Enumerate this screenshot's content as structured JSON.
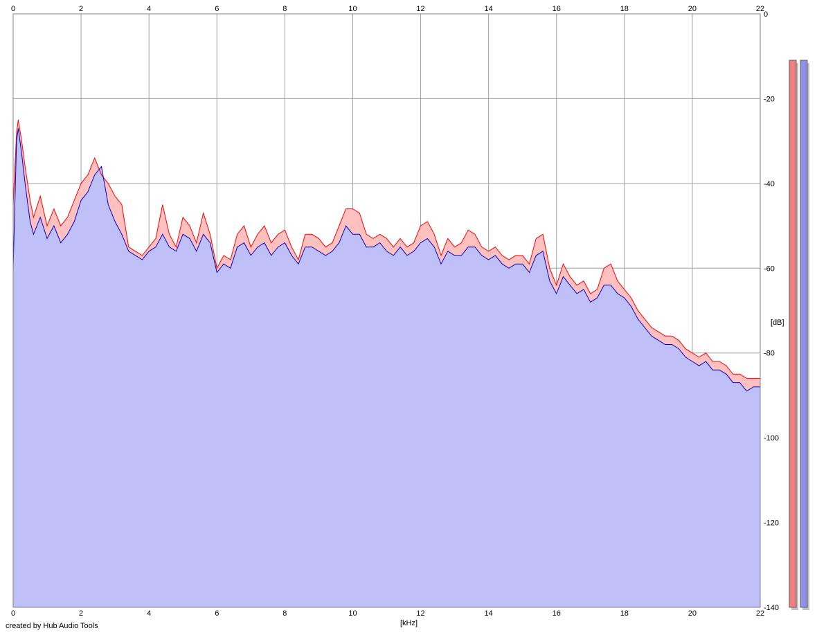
{
  "chart_data": {
    "type": "area",
    "xlabel": "[kHz]",
    "ylabel": "[dB]",
    "xlim": [
      0,
      22
    ],
    "ylim": [
      -140,
      0
    ],
    "x_ticks": [
      "0",
      "2",
      "4",
      "6",
      "8",
      "10",
      "12",
      "14",
      "16",
      "18",
      "20",
      "22"
    ],
    "y_ticks": [
      "0",
      "-20",
      "-40",
      "-60",
      "-80",
      "-100",
      "-120",
      "-140"
    ],
    "grid": true,
    "series": [
      {
        "color": "#ff0000",
        "fill": "#ffc0c0",
        "points": [
          [
            0,
            -45
          ],
          [
            0.1,
            -28
          ],
          [
            0.15,
            -25
          ],
          [
            0.25,
            -30
          ],
          [
            0.35,
            -36
          ],
          [
            0.5,
            -44
          ],
          [
            0.6,
            -48
          ],
          [
            0.8,
            -43
          ],
          [
            1,
            -50
          ],
          [
            1.2,
            -46
          ],
          [
            1.4,
            -50
          ],
          [
            1.6,
            -48
          ],
          [
            1.8,
            -44
          ],
          [
            2,
            -40
          ],
          [
            2.2,
            -38
          ],
          [
            2.4,
            -34
          ],
          [
            2.6,
            -38
          ],
          [
            2.8,
            -40
          ],
          [
            3,
            -43
          ],
          [
            3.2,
            -45
          ],
          [
            3.4,
            -55
          ],
          [
            3.6,
            -56
          ],
          [
            3.8,
            -57
          ],
          [
            4,
            -55
          ],
          [
            4.2,
            -53
          ],
          [
            4.4,
            -45
          ],
          [
            4.6,
            -52
          ],
          [
            4.8,
            -55
          ],
          [
            5,
            -48
          ],
          [
            5.2,
            -50
          ],
          [
            5.4,
            -54
          ],
          [
            5.6,
            -47
          ],
          [
            5.8,
            -52
          ],
          [
            6,
            -60
          ],
          [
            6.2,
            -57
          ],
          [
            6.4,
            -58
          ],
          [
            6.6,
            -52
          ],
          [
            6.8,
            -50
          ],
          [
            7,
            -55
          ],
          [
            7.2,
            -52
          ],
          [
            7.4,
            -50
          ],
          [
            7.6,
            -54
          ],
          [
            7.8,
            -52
          ],
          [
            8,
            -51
          ],
          [
            8.2,
            -55
          ],
          [
            8.4,
            -58
          ],
          [
            8.6,
            -52
          ],
          [
            8.8,
            -52
          ],
          [
            9,
            -53
          ],
          [
            9.2,
            -55
          ],
          [
            9.4,
            -54
          ],
          [
            9.6,
            -50
          ],
          [
            9.8,
            -46
          ],
          [
            10,
            -46
          ],
          [
            10.2,
            -47
          ],
          [
            10.4,
            -52
          ],
          [
            10.6,
            -53
          ],
          [
            10.8,
            -52
          ],
          [
            11,
            -53
          ],
          [
            11.2,
            -55
          ],
          [
            11.4,
            -53
          ],
          [
            11.6,
            -55
          ],
          [
            11.8,
            -54
          ],
          [
            12,
            -50
          ],
          [
            12.2,
            -49
          ],
          [
            12.4,
            -52
          ],
          [
            12.6,
            -57
          ],
          [
            12.8,
            -53
          ],
          [
            13,
            -55
          ],
          [
            13.2,
            -54
          ],
          [
            13.4,
            -51
          ],
          [
            13.6,
            -52
          ],
          [
            13.8,
            -55
          ],
          [
            14,
            -56
          ],
          [
            14.2,
            -55
          ],
          [
            14.4,
            -57
          ],
          [
            14.6,
            -58
          ],
          [
            14.8,
            -57
          ],
          [
            15,
            -57
          ],
          [
            15.2,
            -59
          ],
          [
            15.4,
            -53
          ],
          [
            15.6,
            -52
          ],
          [
            15.8,
            -60
          ],
          [
            16,
            -64
          ],
          [
            16.2,
            -59
          ],
          [
            16.4,
            -62
          ],
          [
            16.6,
            -64
          ],
          [
            16.8,
            -63
          ],
          [
            17,
            -66
          ],
          [
            17.2,
            -65
          ],
          [
            17.4,
            -60
          ],
          [
            17.6,
            -59
          ],
          [
            17.8,
            -63
          ],
          [
            18,
            -65
          ],
          [
            18.2,
            -67
          ],
          [
            18.4,
            -70
          ],
          [
            18.6,
            -72
          ],
          [
            18.8,
            -74
          ],
          [
            19,
            -75
          ],
          [
            19.2,
            -76
          ],
          [
            19.4,
            -76
          ],
          [
            19.6,
            -77
          ],
          [
            19.8,
            -79
          ],
          [
            20,
            -80
          ],
          [
            20.2,
            -81
          ],
          [
            20.4,
            -80
          ],
          [
            20.6,
            -82
          ],
          [
            20.8,
            -82
          ],
          [
            21,
            -83
          ],
          [
            21.2,
            -85
          ],
          [
            21.4,
            -85
          ],
          [
            21.6,
            -86
          ],
          [
            21.8,
            -86
          ],
          [
            22,
            -86
          ]
        ]
      },
      {
        "color": "#0000cc",
        "fill": "#c0c0f8",
        "points": [
          [
            0,
            -60
          ],
          [
            0.1,
            -30
          ],
          [
            0.15,
            -27
          ],
          [
            0.25,
            -33
          ],
          [
            0.35,
            -40
          ],
          [
            0.5,
            -49
          ],
          [
            0.6,
            -52
          ],
          [
            0.8,
            -48
          ],
          [
            1,
            -53
          ],
          [
            1.2,
            -50
          ],
          [
            1.4,
            -54
          ],
          [
            1.6,
            -52
          ],
          [
            1.8,
            -49
          ],
          [
            2,
            -44
          ],
          [
            2.2,
            -42
          ],
          [
            2.4,
            -38
          ],
          [
            2.6,
            -36
          ],
          [
            2.8,
            -45
          ],
          [
            3,
            -49
          ],
          [
            3.2,
            -52
          ],
          [
            3.4,
            -56
          ],
          [
            3.6,
            -57
          ],
          [
            3.8,
            -58
          ],
          [
            4,
            -56
          ],
          [
            4.2,
            -55
          ],
          [
            4.4,
            -52
          ],
          [
            4.6,
            -55
          ],
          [
            4.8,
            -56
          ],
          [
            5,
            -52
          ],
          [
            5.2,
            -53
          ],
          [
            5.4,
            -56
          ],
          [
            5.6,
            -52
          ],
          [
            5.8,
            -54
          ],
          [
            6,
            -61
          ],
          [
            6.2,
            -59
          ],
          [
            6.4,
            -60
          ],
          [
            6.6,
            -55
          ],
          [
            6.8,
            -54
          ],
          [
            7,
            -57
          ],
          [
            7.2,
            -55
          ],
          [
            7.4,
            -54
          ],
          [
            7.6,
            -57
          ],
          [
            7.8,
            -55
          ],
          [
            8,
            -54
          ],
          [
            8.2,
            -57
          ],
          [
            8.4,
            -59
          ],
          [
            8.6,
            -55
          ],
          [
            8.8,
            -55
          ],
          [
            9,
            -56
          ],
          [
            9.2,
            -57
          ],
          [
            9.4,
            -56
          ],
          [
            9.6,
            -54
          ],
          [
            9.8,
            -50
          ],
          [
            10,
            -52
          ],
          [
            10.2,
            -52
          ],
          [
            10.4,
            -55
          ],
          [
            10.6,
            -55
          ],
          [
            10.8,
            -54
          ],
          [
            11,
            -56
          ],
          [
            11.2,
            -57
          ],
          [
            11.4,
            -55
          ],
          [
            11.6,
            -57
          ],
          [
            11.8,
            -56
          ],
          [
            12,
            -54
          ],
          [
            12.2,
            -53
          ],
          [
            12.4,
            -55
          ],
          [
            12.6,
            -59
          ],
          [
            12.8,
            -56
          ],
          [
            13,
            -57
          ],
          [
            13.2,
            -57
          ],
          [
            13.4,
            -55
          ],
          [
            13.6,
            -55
          ],
          [
            13.8,
            -57
          ],
          [
            14,
            -58
          ],
          [
            14.2,
            -57
          ],
          [
            14.4,
            -59
          ],
          [
            14.6,
            -60
          ],
          [
            14.8,
            -59
          ],
          [
            15,
            -59
          ],
          [
            15.2,
            -61
          ],
          [
            15.4,
            -57
          ],
          [
            15.6,
            -56
          ],
          [
            15.8,
            -63
          ],
          [
            16,
            -66
          ],
          [
            16.2,
            -62
          ],
          [
            16.4,
            -64
          ],
          [
            16.6,
            -66
          ],
          [
            16.8,
            -65
          ],
          [
            17,
            -68
          ],
          [
            17.2,
            -67
          ],
          [
            17.4,
            -64
          ],
          [
            17.6,
            -64
          ],
          [
            17.8,
            -66
          ],
          [
            18,
            -67
          ],
          [
            18.2,
            -69
          ],
          [
            18.4,
            -72
          ],
          [
            18.6,
            -74
          ],
          [
            18.8,
            -76
          ],
          [
            19,
            -77
          ],
          [
            19.2,
            -78
          ],
          [
            19.4,
            -78
          ],
          [
            19.6,
            -79
          ],
          [
            19.8,
            -81
          ],
          [
            20,
            -82
          ],
          [
            20.2,
            -83
          ],
          [
            20.4,
            -82
          ],
          [
            20.6,
            -84
          ],
          [
            20.8,
            -84
          ],
          [
            21,
            -85
          ],
          [
            21.2,
            -87
          ],
          [
            21.4,
            -87
          ],
          [
            21.6,
            -89
          ],
          [
            21.8,
            -88
          ],
          [
            22,
            -88
          ]
        ]
      }
    ],
    "level_meters": [
      {
        "color": "#f08080"
      },
      {
        "color": "#9090e8"
      }
    ]
  },
  "footer_text": "created by Hub Audio Tools"
}
